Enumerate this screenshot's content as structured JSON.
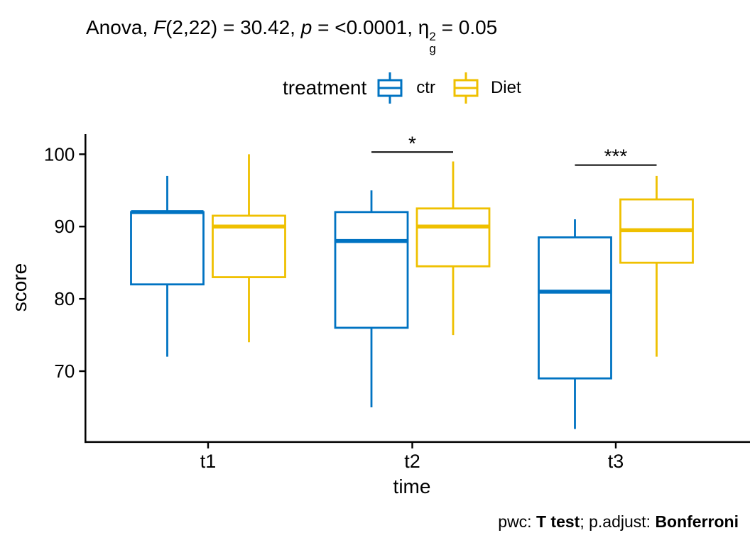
{
  "title": {
    "prefix": "Anova, ",
    "f_symbol": "F",
    "f_args": "(2,22) = 30.42, ",
    "p_symbol": "p",
    "p_value": " = <0.0001, ",
    "eta_symbol": "η",
    "eta_sup": "2",
    "eta_sub": "g",
    "eta_value": " = 0.05"
  },
  "legend": {
    "title": "treatment",
    "items": [
      {
        "label": "ctr",
        "color": "#0073C2"
      },
      {
        "label": "Diet",
        "color": "#EFC000"
      }
    ]
  },
  "axes": {
    "y_label": "score",
    "x_label": "time"
  },
  "caption": {
    "prefix": "pwc: ",
    "test": "T test",
    "mid": "; p.adjust: ",
    "adjust": "Bonferroni"
  },
  "colors": {
    "ctr": "#0073C2",
    "diet": "#EFC000",
    "axis": "#000000"
  },
  "chart_data": {
    "type": "boxplot",
    "title": "Anova, F(2,22) = 30.42, p = <0.0001, ηg² = 0.05",
    "xlabel": "time",
    "ylabel": "score",
    "categories": [
      "t1",
      "t2",
      "t3"
    ],
    "yticks": [
      70,
      80,
      90,
      100
    ],
    "ylim": [
      60.2,
      102.7
    ],
    "grid": false,
    "legend_position": "top",
    "series": [
      {
        "name": "ctr",
        "color": "#0073C2",
        "boxes": [
          {
            "x": "t1",
            "min": 72,
            "q1": 82,
            "median": 92,
            "q3": 92,
            "max": 97
          },
          {
            "x": "t2",
            "min": 65,
            "q1": 76,
            "median": 88,
            "q3": 92,
            "max": 95
          },
          {
            "x": "t3",
            "min": 62,
            "q1": 69,
            "median": 81,
            "q3": 88.5,
            "max": 91
          }
        ]
      },
      {
        "name": "Diet",
        "color": "#EFC000",
        "boxes": [
          {
            "x": "t1",
            "min": 74,
            "q1": 83,
            "median": 90,
            "q3": 91.5,
            "max": 100
          },
          {
            "x": "t2",
            "min": 75,
            "q1": 84.5,
            "median": 90,
            "q3": 92.5,
            "max": 99
          },
          {
            "x": "t3",
            "min": 72,
            "q1": 85,
            "median": 89.5,
            "q3": 93.75,
            "max": 97
          }
        ]
      }
    ],
    "significance": [
      {
        "category": "t2",
        "label": "*",
        "y": 100.3
      },
      {
        "category": "t3",
        "label": "***",
        "y": 98.5
      }
    ]
  }
}
